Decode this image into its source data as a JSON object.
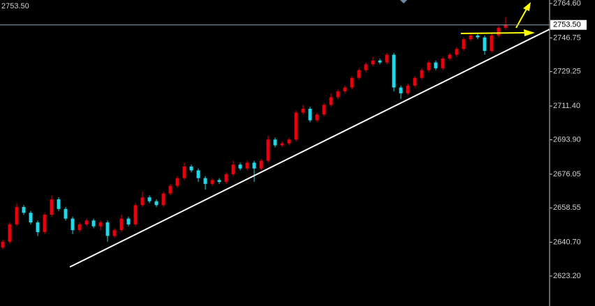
{
  "chart_data": {
    "type": "candlestick",
    "ylim": [
      2607.65,
      2766.41
    ],
    "yticks": [
      {
        "value": 2764.6,
        "label": "2764.60"
      },
      {
        "value": 2746.75,
        "label": "2746.75"
      },
      {
        "value": 2729.25,
        "label": "2729.25"
      },
      {
        "value": 2711.4,
        "label": "2711.40"
      },
      {
        "value": 2693.9,
        "label": "2693.90"
      },
      {
        "value": 2676.05,
        "label": "2676.05"
      },
      {
        "value": 2658.55,
        "label": "2658.55"
      },
      {
        "value": 2640.7,
        "label": "2640.70"
      },
      {
        "value": 2623.2,
        "label": "2623.20"
      }
    ],
    "last_price": {
      "value": 2753.5,
      "label": "2753.50"
    },
    "up_color": "#e8000b",
    "down_color": "#22d8e8",
    "open": [
      2638,
      2641,
      2650,
      2659,
      2656,
      2651,
      2646,
      2655,
      2663,
      2658,
      2653,
      2647,
      2650,
      2652,
      2649,
      2651,
      2644,
      2647,
      2653,
      2650,
      2660,
      2664,
      2662,
      2660,
      2666,
      2670,
      2674,
      2680,
      2678,
      2674,
      2671,
      2673,
      2672,
      2676,
      2681,
      2679,
      2682,
      2679,
      2683,
      2694,
      2691,
      2692,
      2694,
      2708,
      2710,
      2704,
      2707,
      2712,
      2716,
      2719,
      2721,
      2726,
      2730,
      2733,
      2735,
      2734,
      2738,
      2721,
      2718,
      2722,
      2726,
      2730,
      2734,
      2731,
      2736,
      2738,
      2741,
      2746,
      2748,
      2747,
      2740,
      2748,
      2752
    ],
    "high": [
      2642,
      2651,
      2661,
      2660,
      2657,
      2652,
      2656,
      2665,
      2664,
      2659,
      2654,
      2651,
      2653,
      2653,
      2652,
      2652,
      2648,
      2655,
      2654,
      2661,
      2667,
      2665,
      2663,
      2667,
      2671,
      2675,
      2682,
      2681,
      2679,
      2675,
      2674,
      2674,
      2677,
      2683,
      2682,
      2683,
      2683,
      2684,
      2696,
      2695,
      2693,
      2695,
      2709,
      2712,
      2711,
      2708,
      2713,
      2718,
      2720,
      2722,
      2727,
      2731,
      2734,
      2737,
      2736,
      2739,
      2739,
      2722,
      2723,
      2727,
      2731,
      2735,
      2735,
      2737,
      2739,
      2742,
      2747,
      2749,
      2749,
      2748,
      2749,
      2753,
      2757.4
    ],
    "low": [
      2637,
      2640,
      2649,
      2655,
      2650,
      2644,
      2645,
      2654,
      2657,
      2652,
      2645,
      2646,
      2649,
      2648,
      2647,
      2641,
      2643,
      2646,
      2649,
      2649,
      2659,
      2661,
      2659,
      2659,
      2665,
      2669,
      2673,
      2677,
      2672,
      2668,
      2670,
      2671,
      2671,
      2675,
      2678,
      2678,
      2672,
      2678,
      2682,
      2690,
      2690,
      2691,
      2693,
      2707,
      2703,
      2703,
      2706,
      2711,
      2715,
      2718,
      2720,
      2725,
      2729,
      2732,
      2733,
      2733,
      2719,
      2715,
      2717,
      2721,
      2725,
      2729,
      2730,
      2730,
      2735,
      2737,
      2740,
      2745,
      2746,
      2738,
      2739,
      2747,
      2751
    ],
    "close": [
      2641,
      2650,
      2659,
      2656,
      2651,
      2646,
      2655,
      2663,
      2658,
      2653,
      2647,
      2650,
      2652,
      2649,
      2651,
      2644,
      2647,
      2653,
      2650,
      2660,
      2664,
      2662,
      2660,
      2666,
      2670,
      2674,
      2680,
      2678,
      2674,
      2671,
      2673,
      2672,
      2676,
      2681,
      2679,
      2682,
      2679,
      2683,
      2694,
      2691,
      2692,
      2694,
      2708,
      2710,
      2704,
      2707,
      2712,
      2716,
      2719,
      2721,
      2726,
      2730,
      2733,
      2735,
      2734,
      2738,
      2721,
      2718,
      2722,
      2726,
      2730,
      2734,
      2731,
      2736,
      2738,
      2741,
      2746,
      2748,
      2747,
      2740,
      2748,
      2752,
      2753.5
    ]
  }
}
